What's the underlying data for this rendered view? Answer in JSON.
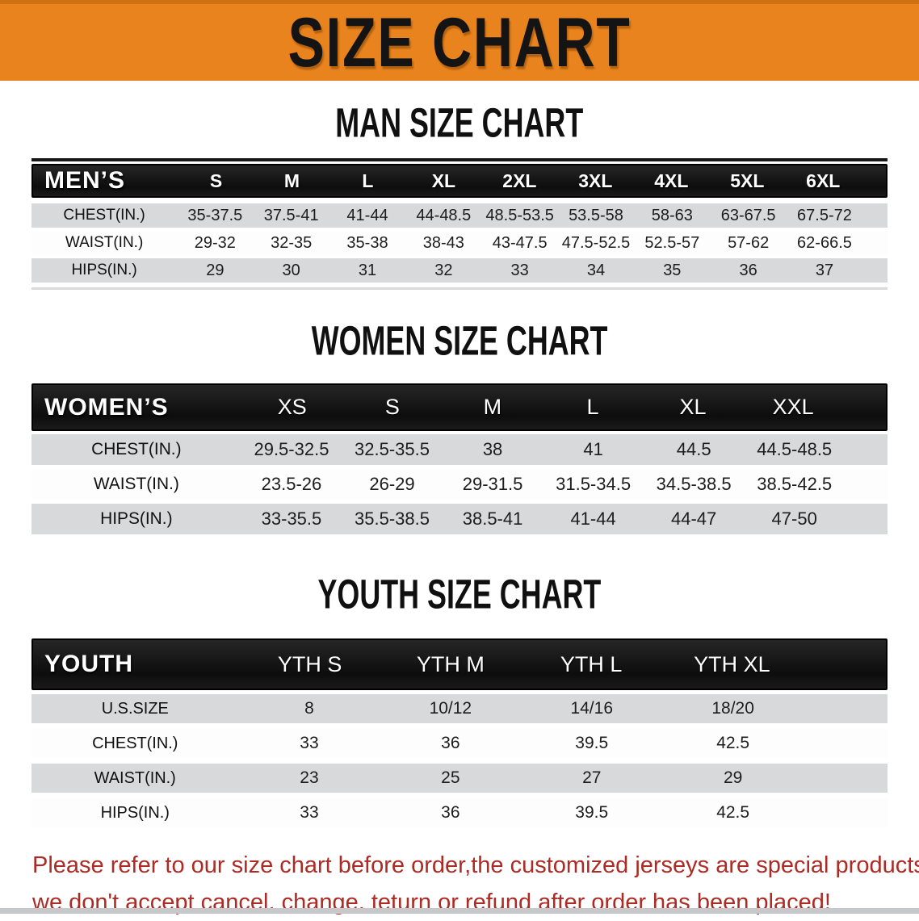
{
  "banner": {
    "title": "SIZE CHART",
    "bg": "#E8831D"
  },
  "chart_data": [
    {
      "type": "table",
      "title": "MAN SIZE CHART",
      "corner_label": "MEN’S",
      "columns": [
        "S",
        "M",
        "L",
        "XL",
        "2XL",
        "3XL",
        "4XL",
        "5XL",
        "6XL"
      ],
      "rows": [
        {
          "label": "CHEST(IN.)",
          "values": [
            "35-37.5",
            "37.5-41",
            "41-44",
            "44-48.5",
            "48.5-53.5",
            "53.5-58",
            "58-63",
            "63-67.5",
            "67.5-72"
          ]
        },
        {
          "label": "WAIST(IN.)",
          "values": [
            "29-32",
            "32-35",
            "35-38",
            "38-43",
            "43-47.5",
            "47.5-52.5",
            "52.5-57",
            "57-62",
            "62-66.5"
          ]
        },
        {
          "label": "HIPS(IN.)",
          "values": [
            "29",
            "30",
            "31",
            "32",
            "33",
            "34",
            "35",
            "36",
            "37"
          ]
        }
      ]
    },
    {
      "type": "table",
      "title": "WOMEN SIZE CHART",
      "corner_label": "WOMEN’S",
      "columns": [
        "XS",
        "S",
        "M",
        "L",
        "XL",
        "XXL"
      ],
      "rows": [
        {
          "label": "CHEST(IN.)",
          "values": [
            "29.5-32.5",
            "32.5-35.5",
            "38",
            "41",
            "44.5",
            "44.5-48.5"
          ]
        },
        {
          "label": "WAIST(IN.)",
          "values": [
            "23.5-26",
            "26-29",
            "29-31.5",
            "31.5-34.5",
            "34.5-38.5",
            "38.5-42.5"
          ]
        },
        {
          "label": "HIPS(IN.)",
          "values": [
            "33-35.5",
            "35.5-38.5",
            "38.5-41",
            "41-44",
            "44-47",
            "47-50"
          ]
        }
      ]
    },
    {
      "type": "table",
      "title": "YOUTH SIZE CHART",
      "corner_label": "YOUTH",
      "columns": [
        "YTH S",
        "YTH M",
        "YTH L",
        "YTH XL"
      ],
      "rows": [
        {
          "label": "U.S.SIZE",
          "values": [
            "8",
            "10/12",
            "14/16",
            "18/20"
          ]
        },
        {
          "label": "CHEST(IN.)",
          "values": [
            "33",
            "36",
            "39.5",
            "42.5"
          ]
        },
        {
          "label": "WAIST(IN.)",
          "values": [
            "23",
            "25",
            "27",
            "29"
          ]
        },
        {
          "label": "HIPS(IN.)",
          "values": [
            "33",
            "36",
            "39.5",
            "42.5"
          ]
        }
      ]
    }
  ],
  "disclaimer": {
    "line1": "Please refer to our size chart before order,the customized jerseys are special products,",
    "line2": "we don't accept cancel, change, teturn or refund after order has been placed!",
    "color": "#AD2B24"
  }
}
